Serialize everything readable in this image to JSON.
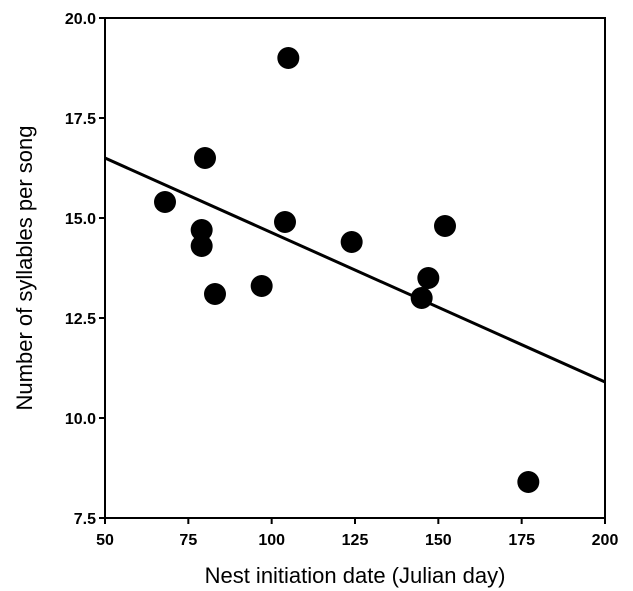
{
  "chart_data": {
    "type": "scatter",
    "title": "",
    "xlabel": "Nest initiation date (Julian day)",
    "ylabel": "Number of syllables per song",
    "xlim": [
      50,
      200
    ],
    "ylim": [
      7.5,
      20.0
    ],
    "x_ticks": [
      "50",
      "75",
      "100",
      "125",
      "150",
      "175",
      "200"
    ],
    "y_ticks": [
      "7.5",
      "10.0",
      "12.5",
      "15.0",
      "17.5",
      "20.0"
    ],
    "grid": false,
    "legend": "none",
    "colors": {
      "points": "#000000",
      "line": "#000000",
      "axes": "#000000"
    },
    "series": [
      {
        "x": [
          68,
          79,
          79,
          80,
          83,
          97,
          104,
          105,
          124,
          145,
          147,
          152,
          177
        ],
        "y": [
          15.4,
          14.7,
          14.3,
          16.5,
          13.1,
          13.3,
          14.9,
          19.0,
          14.4,
          13.0,
          13.5,
          14.8,
          8.4
        ]
      }
    ],
    "trendline": {
      "x": [
        50,
        200
      ],
      "y": [
        16.5,
        10.9
      ]
    }
  }
}
